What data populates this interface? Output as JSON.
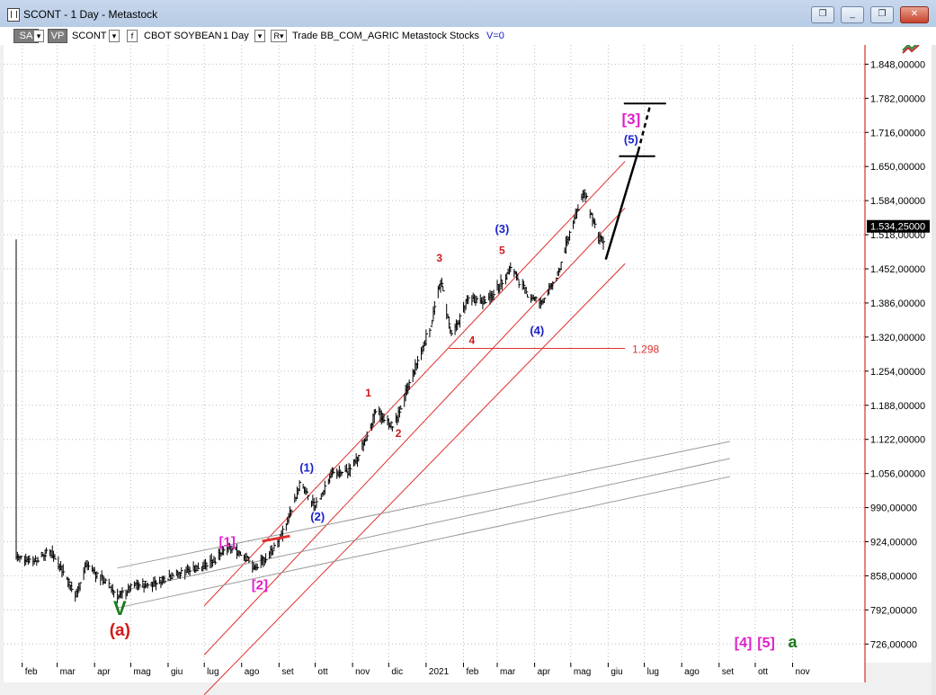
{
  "window": {
    "title": "SCONT - 1 Day - Metastock",
    "buttons": {
      "minimize": "_",
      "restore": "❐",
      "close": "✕",
      "extra1": "❐",
      "extra2": "_"
    }
  },
  "toolbar": {
    "sa_tag": "SA",
    "vp_tag": "VP",
    "symbol": "SCONT",
    "name": "CBOT SOYBEAN",
    "period": "1 Day",
    "r_box": "R▾",
    "rest": "Trade  BB_COM_AGRIC  Metastock  Stocks",
    "v_value": "V=0",
    "dropdown_glyph": "▾",
    "f_box": "f"
  },
  "chart_data": {
    "type": "candlestick",
    "y_ticks": [
      "1.848,00000",
      "1.782,00000",
      "1.716,00000",
      "1.650,00000",
      "1.584,00000",
      "1.518,00000",
      "1.452,00000",
      "1.386,00000",
      "1.320,00000",
      "1.254,00000",
      "1.188,00000",
      "1.122,00000",
      "1.056,00000",
      "990,00000",
      "924,00000",
      "858,00000",
      "792,00000",
      "726,00000"
    ],
    "y_values": [
      1848,
      1782,
      1716,
      1650,
      1584,
      1518,
      1452,
      1386,
      1320,
      1254,
      1188,
      1122,
      1056,
      990,
      924,
      858,
      792,
      726
    ],
    "ylim": [
      690,
      1920
    ],
    "last_price_label": "1.534,25000",
    "last_price": 1534.25,
    "x_ticks": [
      "feb",
      "mar",
      "apr",
      "mag",
      "giu",
      "lug",
      "ago",
      "set",
      "ott",
      "nov",
      "dic",
      "2021",
      "feb",
      "mar",
      "apr",
      "mag",
      "giu",
      "lug",
      "ago",
      "set",
      "ott",
      "nov"
    ],
    "x_start": "2020-01-27",
    "x_end": "2021-12-31",
    "x_tick_dates": [
      "2020-02-01",
      "2020-03-01",
      "2020-04-01",
      "2020-05-01",
      "2020-06-01",
      "2020-07-01",
      "2020-08-01",
      "2020-09-01",
      "2020-10-01",
      "2020-11-01",
      "2020-12-01",
      "2021-01-01",
      "2021-02-01",
      "2021-03-01",
      "2021-04-01",
      "2021-05-01",
      "2021-06-01",
      "2021-07-01",
      "2021-08-01",
      "2021-09-01",
      "2021-10-01",
      "2021-11-01"
    ],
    "price_path": [
      [
        "2020-01-27",
        895
      ],
      [
        "2020-02-10",
        888
      ],
      [
        "2020-02-24",
        905
      ],
      [
        "2020-03-05",
        870
      ],
      [
        "2020-03-16",
        818
      ],
      [
        "2020-03-25",
        880
      ],
      [
        "2020-04-08",
        850
      ],
      [
        "2020-04-21",
        818
      ],
      [
        "2020-05-05",
        840
      ],
      [
        "2020-05-20",
        845
      ],
      [
        "2020-06-05",
        860
      ],
      [
        "2020-06-22",
        870
      ],
      [
        "2020-07-10",
        890
      ],
      [
        "2020-07-20",
        912
      ],
      [
        "2020-08-01",
        902
      ],
      [
        "2020-08-12",
        870
      ],
      [
        "2020-08-25",
        905
      ],
      [
        "2020-09-05",
        945
      ],
      [
        "2020-09-18",
        1035
      ],
      [
        "2020-10-01",
        990
      ],
      [
        "2020-10-14",
        1055
      ],
      [
        "2020-10-28",
        1060
      ],
      [
        "2020-11-05",
        1085
      ],
      [
        "2020-11-20",
        1175
      ],
      [
        "2020-12-05",
        1145
      ],
      [
        "2020-12-18",
        1230
      ],
      [
        "2021-01-05",
        1345
      ],
      [
        "2021-01-13",
        1430
      ],
      [
        "2021-01-22",
        1320
      ],
      [
        "2021-02-05",
        1395
      ],
      [
        "2021-02-20",
        1390
      ],
      [
        "2021-03-03",
        1420
      ],
      [
        "2021-03-12",
        1455
      ],
      [
        "2021-03-25",
        1405
      ],
      [
        "2021-04-06",
        1385
      ],
      [
        "2021-04-20",
        1440
      ],
      [
        "2021-05-04",
        1555
      ],
      [
        "2021-05-12",
        1600
      ],
      [
        "2021-05-24",
        1510
      ],
      [
        "2021-05-28",
        1500
      ]
    ],
    "horizontal_level": {
      "label": "1.298",
      "value": 1298,
      "start": "2021-01-20",
      "end": "2021-06-15"
    },
    "channels": [
      {
        "color": "red",
        "lines": [
          [
            [
              "2020-07-01",
              800
            ],
            [
              "2021-06-15",
              1660
            ]
          ],
          [
            [
              "2020-07-01",
              705
            ],
            [
              "2021-06-15",
              1570
            ]
          ],
          [
            [
              "2020-07-01",
              628
            ],
            [
              "2021-06-15",
              1462
            ]
          ]
        ]
      },
      {
        "color": "gray",
        "lines": [
          [
            [
              "2020-04-20",
              873
            ],
            [
              "2021-09-10",
              1118
            ]
          ],
          [
            [
              "2020-04-20",
              827
            ],
            [
              "2021-09-10",
              1085
            ]
          ],
          [
            [
              "2020-04-20",
              796
            ],
            [
              "2021-09-10",
              1050
            ]
          ]
        ]
      }
    ],
    "projection": {
      "solid": [
        [
          "2021-05-30",
          1470
        ],
        [
          "2021-06-26",
          1680
        ]
      ],
      "dashed": [
        [
          "2021-06-26",
          1680
        ],
        [
          "2021-07-06",
          1770
        ]
      ]
    },
    "target_lines": [
      {
        "value": 1670,
        "start": "2021-06-10",
        "end": "2021-07-10"
      },
      {
        "value": 1772,
        "start": "2021-06-14",
        "end": "2021-07-19"
      }
    ],
    "trend_segment": [
      [
        "2020-08-18",
        925
      ],
      [
        "2020-09-10",
        935
      ]
    ],
    "wave_labels": [
      {
        "text": "V",
        "date": "2020-04-22",
        "price": 782,
        "color": "#1a7a1a",
        "size": 22
      },
      {
        "text": "(a)",
        "date": "2020-04-22",
        "price": 742,
        "color": "#d11a1a",
        "size": 19
      },
      {
        "text": "[1]",
        "date": "2020-07-20",
        "price": 915,
        "color": "#e020c8",
        "size": 15
      },
      {
        "text": "[2]",
        "date": "2020-08-16",
        "price": 832,
        "color": "#e020c8",
        "size": 15
      },
      {
        "text": "(1)",
        "date": "2020-09-24",
        "price": 1060,
        "color": "#1a22c8",
        "size": 13
      },
      {
        "text": "(2)",
        "date": "2020-10-03",
        "price": 965,
        "color": "#1a22c8",
        "size": 13
      },
      {
        "text": "1",
        "date": "2020-11-14",
        "price": 1205,
        "color": "#d11a1a",
        "size": 12
      },
      {
        "text": "2",
        "date": "2020-12-09",
        "price": 1127,
        "color": "#d11a1a",
        "size": 12
      },
      {
        "text": "3",
        "date": "2021-01-12",
        "price": 1466,
        "color": "#d11a1a",
        "size": 12
      },
      {
        "text": "4",
        "date": "2021-02-08",
        "price": 1307,
        "color": "#d11a1a",
        "size": 12
      },
      {
        "text": "5",
        "date": "2021-03-05",
        "price": 1481,
        "color": "#d11a1a",
        "size": 12
      },
      {
        "text": "(3)",
        "date": "2021-03-05",
        "price": 1522,
        "color": "#1a22c8",
        "size": 13
      },
      {
        "text": "(4)",
        "date": "2021-04-03",
        "price": 1325,
        "color": "#1a22c8",
        "size": 13
      },
      {
        "text": "(5)",
        "date": "2021-06-20",
        "price": 1695,
        "color": "#1a22c8",
        "size": 13
      },
      {
        "text": "[3]",
        "date": "2021-06-20",
        "price": 1732,
        "color": "#e020c8",
        "size": 17
      },
      {
        "text": "[4]",
        "date": "2021-09-21",
        "price": 720,
        "color": "#e020c8",
        "size": 16
      },
      {
        "text": "[5]",
        "date": "2021-10-10",
        "price": 720,
        "color": "#e020c8",
        "size": 16
      },
      {
        "text": "a",
        "date": "2021-11-01",
        "price": 720,
        "color": "#1a7a1a",
        "size": 18
      }
    ]
  }
}
